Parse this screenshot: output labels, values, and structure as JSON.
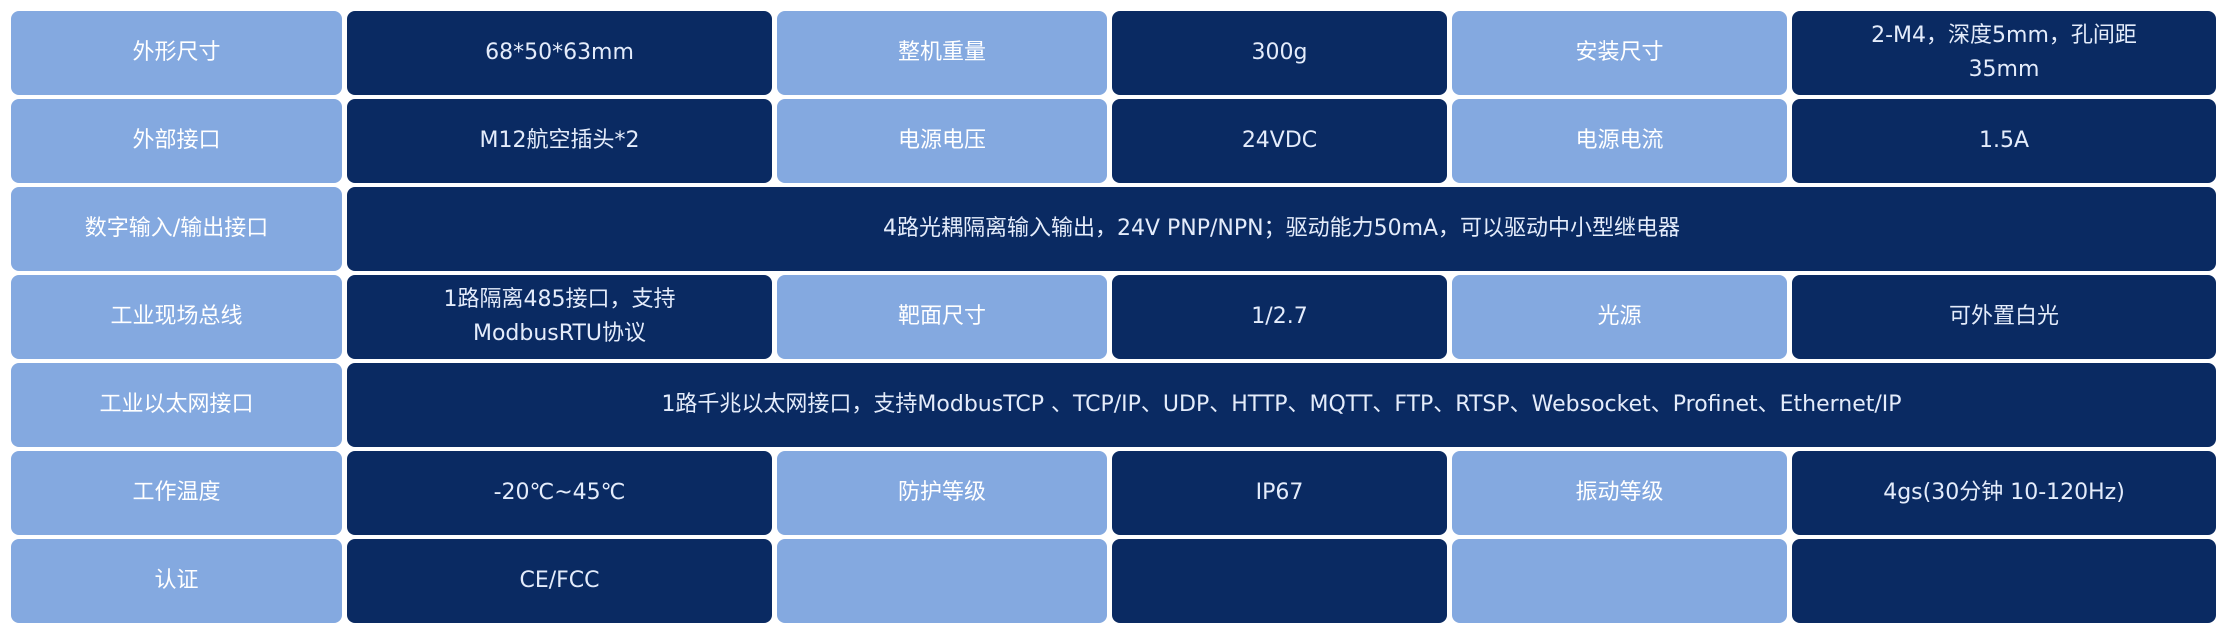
{
  "colors": {
    "label_bg": "#84a9e0",
    "value_bg": "#0a2a62"
  },
  "rows": [
    {
      "cells": [
        {
          "type": "label",
          "text": "外形尺寸"
        },
        {
          "type": "value",
          "text": "68*50*63mm"
        },
        {
          "type": "label",
          "text": "整机重量"
        },
        {
          "type": "value",
          "text": "300g"
        },
        {
          "type": "label",
          "text": "安装尺寸"
        },
        {
          "type": "value",
          "text": "2-M4，深度5mm，孔间距35mm"
        }
      ]
    },
    {
      "cells": [
        {
          "type": "label",
          "text": "外部接口"
        },
        {
          "type": "value",
          "text": "M12航空插头*2"
        },
        {
          "type": "label",
          "text": "电源电压"
        },
        {
          "type": "value",
          "text": "24VDC"
        },
        {
          "type": "label",
          "text": "电源电流"
        },
        {
          "type": "value",
          "text": "1.5A"
        }
      ]
    },
    {
      "cells": [
        {
          "type": "label",
          "text": "数字输入/输出接口"
        },
        {
          "type": "value",
          "text": "4路光耦隔离输入输出，24V PNP/NPN；驱动能力50mA，可以驱动中小型继电器"
        }
      ]
    },
    {
      "cells": [
        {
          "type": "label",
          "text": "工业现场总线"
        },
        {
          "type": "value",
          "text": "1路隔离485接口，支持ModbusRTU协议"
        },
        {
          "type": "label",
          "text": "靶面尺寸"
        },
        {
          "type": "value",
          "text": "1/2.7"
        },
        {
          "type": "label",
          "text": "光源"
        },
        {
          "type": "value",
          "text": "可外置白光"
        }
      ]
    },
    {
      "cells": [
        {
          "type": "label",
          "text": "工业以太网接口"
        },
        {
          "type": "value",
          "text": "1路千兆以太网接口，支持ModbusTCP 、TCP/IP、UDP、HTTP、MQTT、FTP、RTSP、Websocket、Profinet、Ethernet/IP"
        }
      ]
    },
    {
      "cells": [
        {
          "type": "label",
          "text": "工作温度"
        },
        {
          "type": "value",
          "text": "-20℃~45℃"
        },
        {
          "type": "label",
          "text": "防护等级"
        },
        {
          "type": "value",
          "text": "IP67"
        },
        {
          "type": "label",
          "text": "振动等级"
        },
        {
          "type": "value",
          "text": "4gs(30分钟 10-120Hz)"
        }
      ]
    },
    {
      "cells": [
        {
          "type": "label",
          "text": "认证"
        },
        {
          "type": "value",
          "text": "CE/FCC"
        },
        {
          "type": "label",
          "text": ""
        },
        {
          "type": "value",
          "text": ""
        },
        {
          "type": "label",
          "text": ""
        },
        {
          "type": "value",
          "text": ""
        }
      ]
    }
  ]
}
